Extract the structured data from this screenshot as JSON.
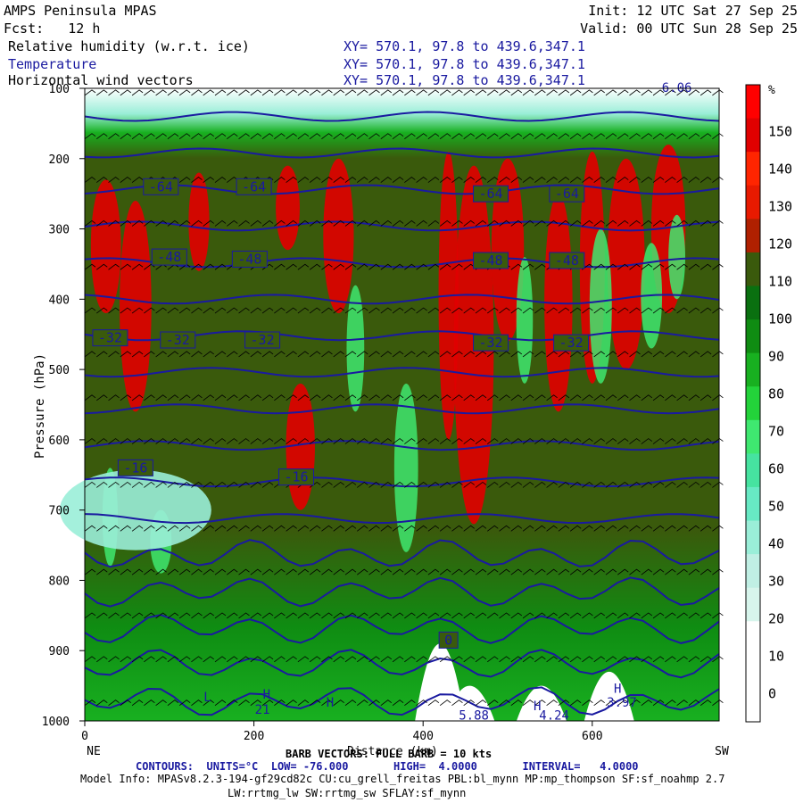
{
  "header": {
    "model": "AMPS Peninsula MPAS",
    "init": "Init: 12 UTC Sat 27 Sep 25",
    "fcst": "Fcst:   12 h",
    "valid": "Valid: 00 UTC Sun 28 Sep 25",
    "fields": [
      {
        "name": "Relative humidity (w.r.t. ice)",
        "xy": "XY= 570.1, 97.8 to 439.6,347.1",
        "color": "#000000"
      },
      {
        "name": "Temperature",
        "xy": "XY= 570.1, 97.8 to 439.6,347.1",
        "color": "#1a1aa0"
      },
      {
        "name": "Horizontal wind vectors",
        "xy": "XY= 570.1, 97.8 to 439.6,347.1",
        "color": "#000000"
      }
    ]
  },
  "footer": {
    "barb": "BARB VECTORS: FULL BARB = 10 kts",
    "contours": "CONTOURS:  UNITS=°C  LOW= -76.000       HIGH=  4.0000       INTERVAL=   4.0000",
    "model_info": "Model Info: MPASv8.2.3-194-gf29cd82c CU:cu_grell_freitas PBL:bl_mynn MP:mp_thompson SF:sf_noahmp 2.7",
    "model_info2": "LW:rrtmg_lw SW:rrtmg_sw SFLAY:sf_mynn"
  },
  "chart_data": {
    "type": "heatmap",
    "title": "",
    "xlabel": "Distance (km)",
    "ylabel": "Pressure (hPa)",
    "xlim": [
      0,
      750
    ],
    "ylim": [
      1000,
      100
    ],
    "x_ticks": [
      0,
      200,
      400,
      600
    ],
    "y_ticks": [
      100,
      200,
      300,
      400,
      500,
      600,
      700,
      800,
      900,
      1000
    ],
    "x_end_labels": {
      "left": "NE",
      "right": "SW"
    },
    "colorbar": {
      "unit": "%",
      "tick_labels": [
        "150",
        "140",
        "130",
        "120",
        "110",
        "100",
        "90",
        "80",
        "70",
        "60",
        "50",
        "40",
        "30",
        "20",
        "10",
        "0"
      ],
      "colors": [
        "#ffffff",
        "#ffffff",
        "#ffffff",
        "#d7f5ec",
        "#c0efe4",
        "#9aeed8",
        "#67e9c4",
        "#46e3a0",
        "#3fe870",
        "#23d33a",
        "#18b020",
        "#0f8c12",
        "#0a7010",
        "#3a5a0c",
        "#b02000",
        "#e81a00",
        "#ff2500",
        "#e00000",
        "#ff0000"
      ]
    },
    "temperature_contour_labels": [
      {
        "x": 90,
        "p": 240,
        "text": "-64"
      },
      {
        "x": 200,
        "p": 240,
        "text": "-64"
      },
      {
        "x": 480,
        "p": 250,
        "text": "-64"
      },
      {
        "x": 570,
        "p": 250,
        "text": "-64"
      },
      {
        "x": 100,
        "p": 340,
        "text": "-48"
      },
      {
        "x": 195,
        "p": 343,
        "text": "-48"
      },
      {
        "x": 480,
        "p": 345,
        "text": "-48"
      },
      {
        "x": 570,
        "p": 345,
        "text": "-48"
      },
      {
        "x": 30,
        "p": 455,
        "text": "-32"
      },
      {
        "x": 110,
        "p": 458,
        "text": "-32"
      },
      {
        "x": 210,
        "p": 458,
        "text": "-32"
      },
      {
        "x": 480,
        "p": 462,
        "text": "-32"
      },
      {
        "x": 575,
        "p": 462,
        "text": "-32"
      },
      {
        "x": 60,
        "p": 640,
        "text": "-16"
      },
      {
        "x": 250,
        "p": 653,
        "text": "-16"
      },
      {
        "x": 430,
        "p": 885,
        "text": "0"
      }
    ],
    "other_labels": [
      {
        "x": 145,
        "p": 972,
        "text": "L"
      },
      {
        "x": 215,
        "p": 968,
        "text": "H"
      },
      {
        "x": 290,
        "p": 980,
        "text": "H"
      },
      {
        "x": 535,
        "p": 985,
        "text": "H"
      },
      {
        "x": 630,
        "p": 960,
        "text": "H"
      },
      {
        "x": 210,
        "p": 990,
        "text": "21"
      },
      {
        "x": 460,
        "p": 998,
        "text": "5.88"
      },
      {
        "x": 555,
        "p": 998,
        "text": "4.24"
      },
      {
        "x": 635,
        "p": 980,
        "text": "3.97"
      },
      {
        "x": 700,
        "p": 105,
        "text": "6.06"
      }
    ]
  }
}
